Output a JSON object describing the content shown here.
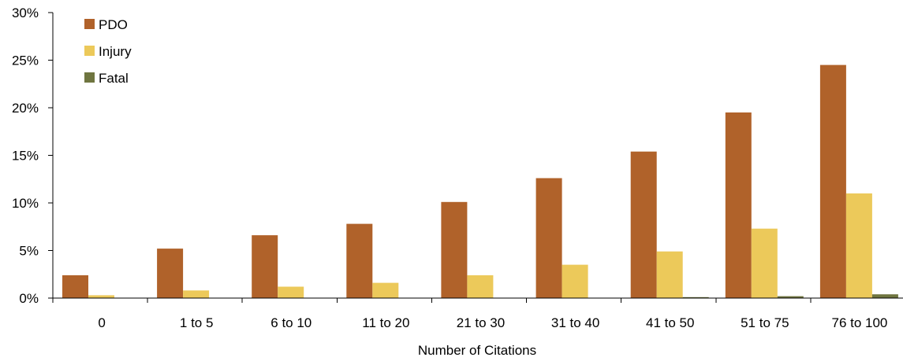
{
  "chart_data": {
    "type": "bar",
    "xlabel": "Number of Citations",
    "ylabel": "",
    "ylim": [
      0,
      30
    ],
    "y_ticks": [
      0,
      5,
      10,
      15,
      20,
      25,
      30
    ],
    "y_tick_labels": [
      "0%",
      "5%",
      "10%",
      "15%",
      "20%",
      "25%",
      "30%"
    ],
    "grid": false,
    "legend_position": "top-left",
    "categories": [
      "0",
      "1 to 5",
      "6 to 10",
      "11 to 20",
      "21 to 30",
      "31 to 40",
      "41 to 50",
      "51 to 75",
      "76 to 100"
    ],
    "series": [
      {
        "name": "PDO",
        "color": "#b0622a",
        "values": [
          2.4,
          5.2,
          6.6,
          7.8,
          10.1,
          12.6,
          15.4,
          19.5,
          24.5
        ]
      },
      {
        "name": "Injury",
        "color": "#ecc95a",
        "values": [
          0.3,
          0.8,
          1.2,
          1.6,
          2.4,
          3.5,
          4.9,
          7.3,
          11.0
        ]
      },
      {
        "name": "Fatal",
        "color": "#6f7540",
        "values": [
          0.0,
          0.0,
          0.0,
          0.0,
          0.0,
          0.0,
          0.1,
          0.2,
          0.4
        ]
      }
    ]
  }
}
